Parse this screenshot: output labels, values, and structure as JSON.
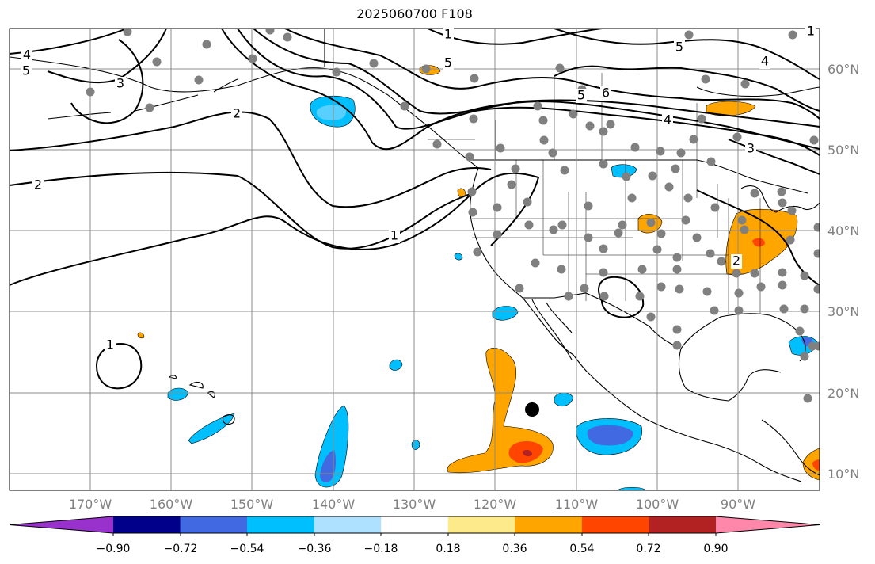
{
  "title": "2025060700 F108",
  "map": {
    "lon_labels": [
      "170°W",
      "160°W",
      "150°W",
      "140°W",
      "130°W",
      "120°W",
      "110°W",
      "100°W",
      "90°W"
    ],
    "lat_labels": [
      "60°N",
      "50°N",
      "40°N",
      "30°N",
      "20°N",
      "10°N"
    ],
    "contour_labels": [
      "4",
      "5",
      "3",
      "2",
      "2",
      "1",
      "1",
      "1",
      "4",
      "5",
      "5",
      "6",
      "5",
      "4",
      "3",
      "2",
      "1"
    ],
    "marker_icon": "black-dot-marker",
    "station_icon": "gray-station-dot"
  },
  "colorbar": {
    "tick_labels": [
      "−0.90",
      "−0.72",
      "−0.54",
      "−0.36",
      "−0.18",
      "0.18",
      "0.36",
      "0.54",
      "0.72",
      "0.90"
    ],
    "colors": [
      "#9932cc",
      "#00008b",
      "#4169e1",
      "#00bfff",
      "#aee0ff",
      "#ffffff",
      "#fdea8a",
      "#ffa500",
      "#ff4500",
      "#b22222",
      "#ff88aa"
    ]
  },
  "colors": {
    "contour": "#000000",
    "grid": "#8c8c8c",
    "station": "#808080",
    "land_outline": "#000000"
  }
}
